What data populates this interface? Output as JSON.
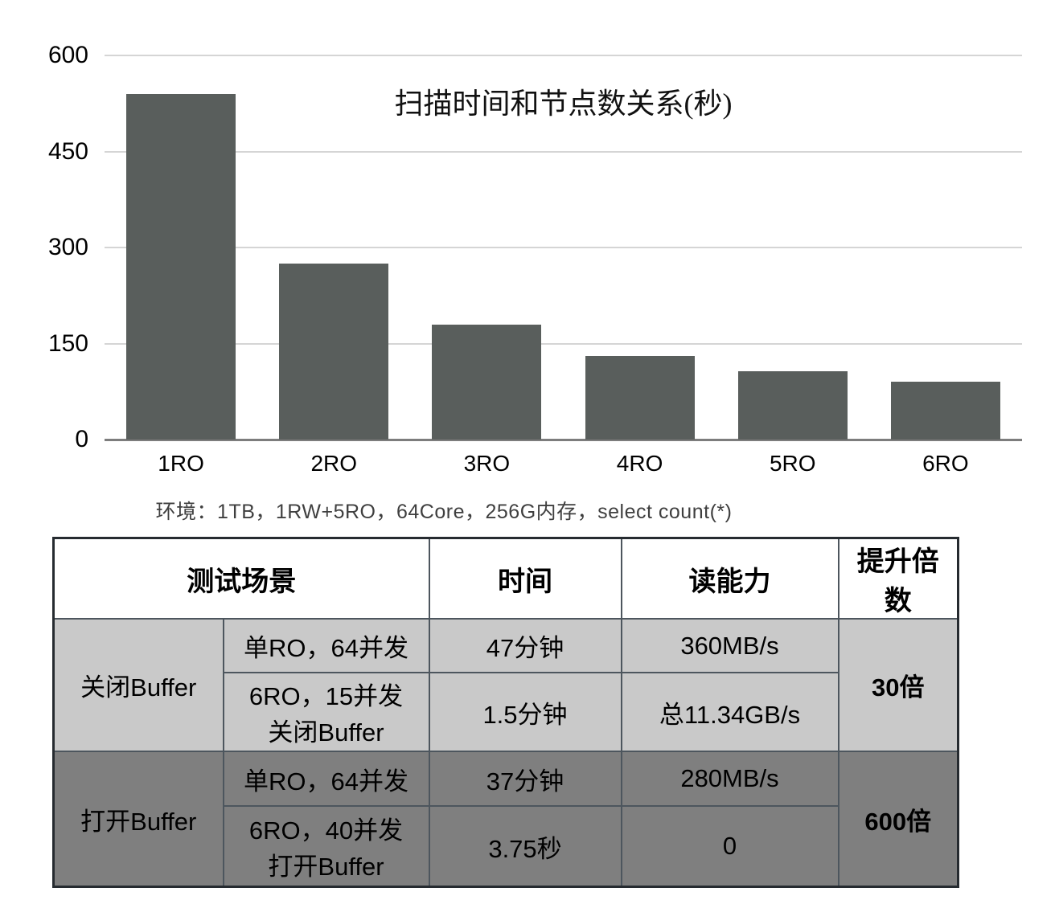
{
  "chart_data": {
    "type": "bar",
    "title": "扫描时间和节点数关系(秒)",
    "categories": [
      "1RO",
      "2RO",
      "3RO",
      "4RO",
      "5RO",
      "6RO"
    ],
    "values": [
      540,
      275,
      180,
      130,
      107,
      90
    ],
    "yticks": [
      0,
      150,
      300,
      450,
      600
    ],
    "ylim": [
      0,
      600
    ],
    "xlabel": "",
    "ylabel": "",
    "grid": true,
    "legend_position": "none",
    "bar_color": "#595e5c",
    "annotation": "环境：1TB，1RW+5RO，64Core，256G内存，select count(*)"
  },
  "table": {
    "headers": [
      "测试场景",
      "时间",
      "读能力",
      "提升倍数"
    ],
    "groups": [
      {
        "name": "关闭Buffer",
        "multiplier": "30倍",
        "rows": [
          {
            "scenario_line1": "单RO，64并发",
            "scenario_line2": "",
            "time": "47分钟",
            "read": "360MB/s"
          },
          {
            "scenario_line1": "6RO，15并发",
            "scenario_line2": "关闭Buffer",
            "time": "1.5分钟",
            "read": "总11.34GB/s"
          }
        ]
      },
      {
        "name": "打开Buffer",
        "multiplier": "600倍",
        "rows": [
          {
            "scenario_line1": "单RO，64并发",
            "scenario_line2": "",
            "time": "37分钟",
            "read": "280MB/s"
          },
          {
            "scenario_line1": "6RO，40并发",
            "scenario_line2": "打开Buffer",
            "time": "3.75秒",
            "read": "0"
          }
        ]
      }
    ],
    "colors": {
      "header_bg": "#ffffff",
      "group1_bg": "#c9c9c9",
      "group2_bg": "#7f7f7f",
      "inner_border": "#4d565e"
    }
  }
}
